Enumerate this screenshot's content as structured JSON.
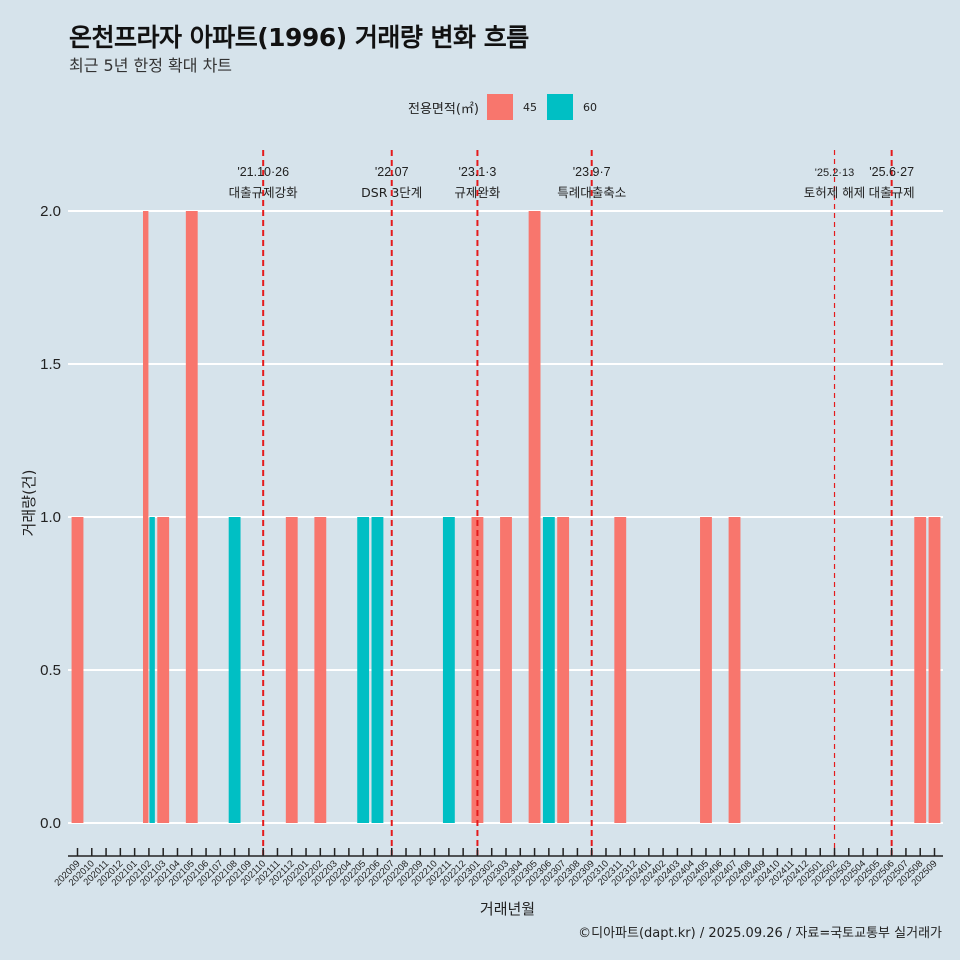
{
  "header": {
    "title": "온천프라자 아파트(1996) 거래량 변화 흐름",
    "subtitle": "최근 5년 한정 확대 차트"
  },
  "legend": {
    "title": "전용면적(㎡)",
    "items": [
      {
        "label": "45",
        "color": "#f8766d"
      },
      {
        "label": "60",
        "color": "#00bfc4"
      }
    ]
  },
  "caption": "©디아파트(dapt.kr) / 2025.09.26 / 자료=국토교통부 실거래가",
  "chart_data": {
    "type": "bar",
    "title": "온천프라자 아파트(1996) 거래량 변화 흐름",
    "subtitle": "최근 5년 한정 확대 차트",
    "xlabel": "거래년월",
    "ylabel": "거래량(건)",
    "ylim": [
      0,
      2
    ],
    "yticks": [
      "0.0",
      "0.5",
      "1.0",
      "1.5",
      "2.0"
    ],
    "ytick_values": [
      0,
      0.5,
      1.0,
      1.5,
      2.0
    ],
    "grid": true,
    "legend_position": "top",
    "categories": [
      "202009",
      "202010",
      "202011",
      "202012",
      "202101",
      "202102",
      "202103",
      "202104",
      "202105",
      "202106",
      "202107",
      "202108",
      "202109",
      "202110",
      "202111",
      "202112",
      "202201",
      "202202",
      "202203",
      "202204",
      "202205",
      "202206",
      "202207",
      "202208",
      "202209",
      "202210",
      "202211",
      "202212",
      "202301",
      "202302",
      "202303",
      "202304",
      "202305",
      "202306",
      "202307",
      "202308",
      "202309",
      "202310",
      "202311",
      "202312",
      "202401",
      "202402",
      "202403",
      "202404",
      "202405",
      "202406",
      "202407",
      "202408",
      "202409",
      "202410",
      "202411",
      "202412",
      "202501",
      "202502",
      "202503",
      "202504",
      "202505",
      "202506",
      "202507",
      "202508",
      "202509"
    ],
    "series": [
      {
        "name": "45",
        "color": "#f8766d",
        "points": [
          {
            "x": "202009",
            "y": 1
          },
          {
            "x": "202102",
            "y": 2
          },
          {
            "x": "202103",
            "y": 1
          },
          {
            "x": "202105",
            "y": 2
          },
          {
            "x": "202112",
            "y": 1
          },
          {
            "x": "202202",
            "y": 1
          },
          {
            "x": "202301",
            "y": 1
          },
          {
            "x": "202303",
            "y": 1
          },
          {
            "x": "202305",
            "y": 2
          },
          {
            "x": "202307",
            "y": 1
          },
          {
            "x": "202311",
            "y": 1
          },
          {
            "x": "202405",
            "y": 1
          },
          {
            "x": "202407",
            "y": 1
          },
          {
            "x": "202508",
            "y": 1
          },
          {
            "x": "202509",
            "y": 1
          }
        ]
      },
      {
        "name": "60",
        "color": "#00bfc4",
        "points": [
          {
            "x": "202102",
            "y": 1
          },
          {
            "x": "202108",
            "y": 1
          },
          {
            "x": "202205",
            "y": 1
          },
          {
            "x": "202206",
            "y": 1
          },
          {
            "x": "202211",
            "y": 1
          },
          {
            "x": "202306",
            "y": 1
          }
        ]
      }
    ],
    "annotations": [
      {
        "x": "202110",
        "date": "'21.10·26",
        "label": "대출규제강화",
        "style": "thick"
      },
      {
        "x": "202207",
        "date": "'22.07",
        "label": "DSR 3단계",
        "style": "thick"
      },
      {
        "x": "202301",
        "date": "'23.1·3",
        "label": "규제완화",
        "style": "thick"
      },
      {
        "x": "202309",
        "date": "'23.9·7",
        "label": "특례대출축소",
        "style": "thick"
      },
      {
        "x": "202502",
        "date": "'25.2·13",
        "label": "토허제 해제",
        "style": "thin"
      },
      {
        "x": "202506",
        "date": "'25.6·27",
        "label": "대출규제",
        "style": "thick"
      }
    ],
    "annotation_color": "#e41a1c"
  }
}
